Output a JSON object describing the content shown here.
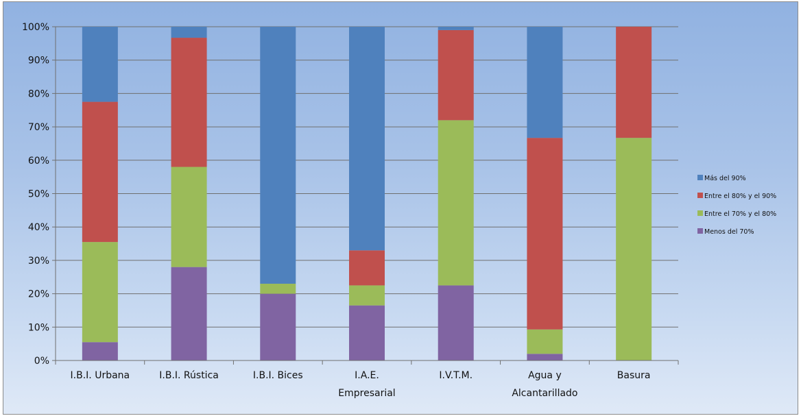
{
  "chart_data": {
    "type": "bar",
    "stacked": true,
    "percent": true,
    "title": "",
    "xlabel": "",
    "ylabel": "",
    "ylim": [
      0,
      100
    ],
    "yticks": [
      "0%",
      "10%",
      "20%",
      "30%",
      "40%",
      "50%",
      "60%",
      "70%",
      "80%",
      "90%",
      "100%"
    ],
    "grid": true,
    "legend_position": "right",
    "categories": [
      [
        "I.B.I. Urbana"
      ],
      [
        "I.B.I. Rústica"
      ],
      [
        "I.B.I. Bices"
      ],
      [
        "I.A.E.",
        "Empresarial"
      ],
      [
        "I.V.T.M."
      ],
      [
        "Agua y",
        "Alcantarillado"
      ],
      [
        "Basura"
      ]
    ],
    "series": [
      {
        "name": "Menos del 70%",
        "color": "#8064a2",
        "values": [
          5.5,
          28,
          20,
          16.5,
          22.5,
          2,
          0
        ]
      },
      {
        "name": "Entre el 70% y el 80%",
        "color": "#9bbb59",
        "values": [
          30,
          30,
          3,
          6,
          49.5,
          7.3,
          66.7
        ]
      },
      {
        "name": "Entre el 80% y el 90%",
        "color": "#c0504d",
        "values": [
          42,
          38.7,
          0,
          10.5,
          27,
          57.4,
          33.3
        ]
      },
      {
        "name": "Más del 90%",
        "color": "#4f81bd",
        "values": [
          22.5,
          3.3,
          77,
          67,
          1,
          33.3,
          0
        ]
      }
    ]
  }
}
